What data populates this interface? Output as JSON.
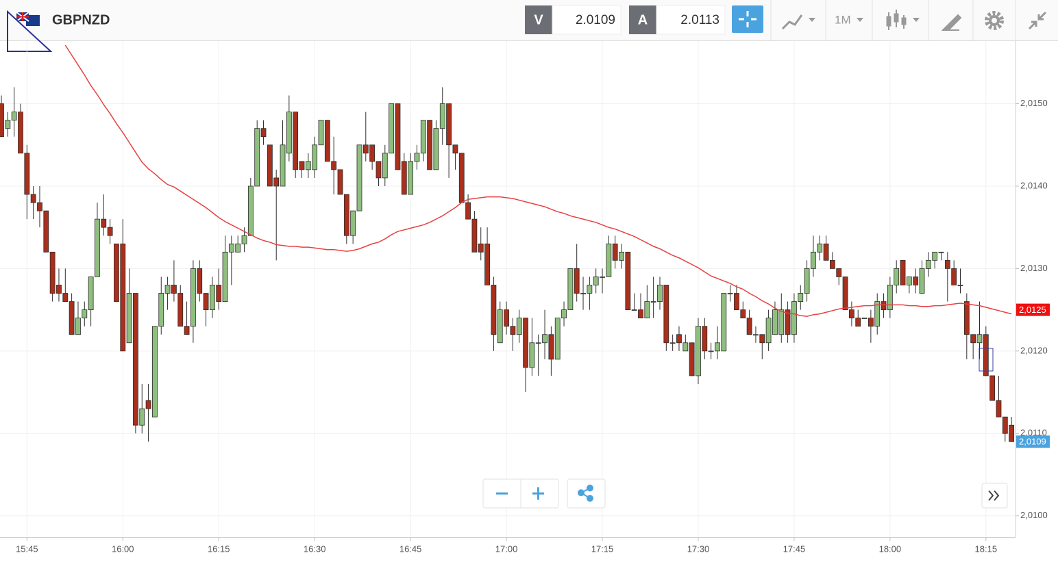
{
  "header": {
    "symbol": "GBPNZD",
    "bid_label": "V",
    "bid": "2.0109",
    "ask_label": "A",
    "ask": "2.0113",
    "timeframe": "1M"
  },
  "chart_data": {
    "type": "candlestick",
    "categories": [
      null,
      null,
      null,
      null,
      "15:45",
      null,
      null,
      null,
      null,
      null,
      null,
      null,
      null,
      null,
      null,
      null,
      null,
      null,
      null,
      "16:00",
      null,
      null,
      null,
      null,
      null,
      null,
      null,
      null,
      null,
      null,
      null,
      null,
      null,
      null,
      "16:15",
      null,
      null,
      null,
      null,
      null,
      null,
      null,
      null,
      null,
      null,
      null,
      null,
      null,
      null,
      "16:30",
      null,
      null,
      null,
      null,
      null,
      null,
      null,
      null,
      null,
      null,
      null,
      null,
      null,
      null,
      "16:45",
      null,
      null,
      null,
      null,
      null,
      null,
      null,
      null,
      null,
      null,
      null,
      null,
      null,
      null,
      "17:00",
      null,
      null,
      null,
      null,
      null,
      null,
      null,
      null,
      null,
      null,
      null,
      null,
      null,
      null,
      "17:15",
      null,
      null,
      null,
      null,
      null,
      null,
      null,
      null,
      null,
      null,
      null,
      null,
      null,
      null,
      "17:30",
      null,
      null,
      null,
      null,
      null,
      null,
      null,
      null,
      null,
      null,
      null,
      null,
      null,
      null,
      "17:45",
      null,
      null,
      null,
      null,
      null,
      null,
      null,
      null,
      null,
      null,
      null,
      null,
      null,
      null,
      "18:00",
      null,
      null,
      null,
      null,
      null,
      null,
      null,
      null,
      null,
      null,
      null,
      null,
      null,
      null,
      "18:15",
      null,
      null,
      null,
      null
    ],
    "open": [
      2.015,
      2.0147,
      2.0148,
      2.0149,
      2.0144,
      2.0139,
      2.0138,
      2.0137,
      2.0132,
      2.0128,
      2.0127,
      2.0126,
      2.0122,
      2.0124,
      2.0125,
      2.0129,
      2.0136,
      2.0135,
      2.0133,
      2.0133,
      2.0121,
      2.0127,
      2.0111,
      2.0114,
      2.0112,
      2.0123,
      2.0127,
      2.0128,
      2.0127,
      2.0123,
      2.0123,
      2.013,
      2.0127,
      2.0125,
      2.0128,
      2.0126,
      2.0132,
      2.0132,
      2.0133,
      2.0134,
      2.014,
      2.0147,
      2.0145,
      2.0141,
      2.014,
      2.0144,
      2.0149,
      2.0143,
      2.0142,
      2.0142,
      2.0145,
      2.0148,
      2.0143,
      2.0142,
      2.0139,
      2.0134,
      2.0137,
      2.0145,
      2.0145,
      2.0143,
      2.0141,
      2.0144,
      2.015,
      2.0143,
      2.0139,
      2.0143,
      2.0144,
      2.0148,
      2.0142,
      2.0147,
      2.015,
      2.0145,
      2.0144,
      2.0138,
      2.0136,
      2.0133,
      2.0133,
      2.0128,
      2.0121,
      2.0125,
      2.0123,
      2.0122,
      2.0124,
      2.0118,
      2.0121,
      2.0121,
      2.0122,
      2.0119,
      2.0124,
      2.0125,
      2.013,
      2.0127,
      2.0127,
      2.0128,
      2.0129,
      2.0129,
      2.0133,
      2.0131,
      2.0132,
      2.0125,
      2.0125,
      2.0124,
      2.0126,
      2.0126,
      2.0128,
      2.0121,
      2.0122,
      2.012,
      2.0121,
      2.0117,
      2.0123,
      2.012,
      2.012,
      2.012,
      2.0127,
      2.0127,
      2.0125,
      2.0124,
      2.0122,
      2.0122,
      2.0121,
      2.0122,
      2.0122,
      2.0125,
      2.0122,
      2.0126,
      2.0127,
      2.013,
      2.0132,
      2.0133,
      2.0131,
      2.013,
      2.0129,
      2.0125,
      2.0124,
      2.0124,
      2.0124,
      2.0123,
      2.0126,
      2.0125,
      2.0128,
      2.0131,
      2.0128,
      2.0129,
      2.0127,
      2.013,
      2.0131,
      2.0132,
      2.0131,
      2.013,
      2.0128,
      2.0126,
      2.0122,
      2.0121,
      2.0122,
      2.0117,
      2.0114,
      2.0112,
      2.0111
    ],
    "high": [
      2.0151,
      2.0149,
      2.0152,
      2.015,
      2.0145,
      2.014,
      2.014,
      2.0137,
      2.0132,
      2.013,
      2.013,
      2.0127,
      2.0126,
      2.0126,
      2.0129,
      2.0138,
      2.0139,
      2.0136,
      2.0133,
      2.0136,
      2.013,
      2.0127,
      2.0116,
      2.0116,
      2.0123,
      2.0129,
      2.0129,
      2.0131,
      2.0128,
      2.0126,
      2.0131,
      2.0131,
      2.0127,
      2.0129,
      2.013,
      2.0134,
      2.0134,
      2.0134,
      2.0135,
      2.0141,
      2.0148,
      2.0148,
      2.0145,
      2.0142,
      2.0148,
      2.0151,
      2.0149,
      2.0143,
      2.0144,
      2.0146,
      2.0148,
      2.0148,
      2.0146,
      2.0142,
      2.0139,
      2.0137,
      2.0145,
      2.0149,
      2.0145,
      2.0143,
      2.0145,
      2.015,
      2.015,
      2.0144,
      2.0144,
      2.0145,
      2.0148,
      2.0148,
      2.0148,
      2.0152,
      2.015,
      2.0145,
      2.0144,
      2.0139,
      2.0137,
      2.0135,
      2.0135,
      2.0129,
      2.0126,
      2.0126,
      2.0124,
      2.0125,
      2.0124,
      2.0124,
      2.0122,
      2.0125,
      2.0123,
      2.0124,
      2.0126,
      2.013,
      2.0133,
      2.0129,
      2.0129,
      2.013,
      2.013,
      2.0134,
      2.0134,
      2.0133,
      2.0132,
      2.0127,
      2.0127,
      2.0128,
      2.0129,
      2.0129,
      2.0128,
      2.0122,
      2.0123,
      2.0122,
      2.0121,
      2.0124,
      2.0124,
      2.0121,
      2.0123,
      2.0127,
      2.0128,
      2.0128,
      2.0126,
      2.0125,
      2.0123,
      2.0122,
      2.0125,
      2.0126,
      2.0127,
      2.0126,
      2.0127,
      2.0128,
      2.0131,
      2.0134,
      2.0134,
      2.0134,
      2.0132,
      2.013,
      2.0129,
      2.0126,
      2.0125,
      2.0124,
      2.0125,
      2.0127,
      2.0127,
      2.0129,
      2.0131,
      2.0131,
      2.0129,
      2.013,
      2.0131,
      2.0132,
      2.0132,
      2.0132,
      2.0132,
      2.0131,
      2.013,
      2.0127,
      2.0122,
      2.0126,
      2.0123,
      2.0117,
      2.0117,
      2.0112,
      2.0112
    ],
    "low": [
      2.0146,
      2.0146,
      2.0146,
      2.0144,
      2.0136,
      2.0136,
      2.0135,
      2.0132,
      2.0126,
      2.0126,
      2.0126,
      2.0122,
      2.0122,
      2.0123,
      2.0123,
      2.0129,
      2.0134,
      2.0133,
      2.0126,
      2.012,
      2.0121,
      2.011,
      2.011,
      2.0109,
      2.0112,
      2.0122,
      2.0125,
      2.0126,
      2.0123,
      2.0122,
      2.0121,
      2.0126,
      2.0123,
      2.0124,
      2.0125,
      2.0126,
      2.0128,
      2.0132,
      2.0132,
      2.0134,
      2.014,
      2.0145,
      2.014,
      2.0131,
      2.014,
      2.0143,
      2.0141,
      2.0141,
      2.0141,
      2.0141,
      2.0145,
      2.0143,
      2.0139,
      2.0139,
      2.0133,
      2.0133,
      2.0137,
      2.0143,
      2.0142,
      2.014,
      2.014,
      2.0144,
      2.0142,
      2.0139,
      2.0139,
      2.0142,
      2.0143,
      2.0142,
      2.0142,
      2.0145,
      2.0141,
      2.0142,
      2.0138,
      2.0136,
      2.0132,
      2.0131,
      2.0128,
      2.012,
      2.0121,
      2.0122,
      2.012,
      2.0121,
      2.0115,
      2.0117,
      2.0117,
      2.0119,
      2.0117,
      2.0119,
      2.0123,
      2.0125,
      2.0126,
      2.0125,
      2.0125,
      2.0127,
      2.0127,
      2.0129,
      2.013,
      2.013,
      2.0125,
      2.0125,
      2.0124,
      2.0124,
      2.0124,
      2.0125,
      2.012,
      2.012,
      2.012,
      2.012,
      2.0117,
      2.0116,
      2.0119,
      2.0119,
      2.0119,
      2.012,
      2.0126,
      2.0125,
      2.0124,
      2.0122,
      2.0121,
      2.0119,
      2.012,
      2.0122,
      2.0121,
      2.0121,
      2.0121,
      2.0125,
      2.0126,
      2.0129,
      2.0131,
      2.0131,
      2.013,
      2.0128,
      2.0125,
      2.0123,
      2.0123,
      2.0124,
      2.0121,
      2.0122,
      2.0124,
      2.0124,
      2.0127,
      2.0128,
      2.0127,
      2.0127,
      2.0127,
      2.0129,
      2.013,
      2.0131,
      2.0126,
      2.0128,
      2.0127,
      2.0119,
      2.0119,
      2.0119,
      2.0117,
      2.0114,
      2.0112,
      2.0109,
      2.0109
    ],
    "close": [
      2.0146,
      2.0148,
      2.0149,
      2.0144,
      2.0139,
      2.0138,
      2.0137,
      2.0132,
      2.0127,
      2.0127,
      2.0126,
      2.0122,
      2.0124,
      2.0125,
      2.0129,
      2.0136,
      2.0135,
      2.0134,
      2.0126,
      2.012,
      2.0127,
      2.0111,
      2.0113,
      2.0113,
      2.0123,
      2.0127,
      2.0128,
      2.0127,
      2.0123,
      2.0122,
      2.013,
      2.0127,
      2.0125,
      2.0128,
      2.0126,
      2.0132,
      2.0133,
      2.0133,
      2.0134,
      2.014,
      2.0147,
      2.0146,
      2.014,
      2.014,
      2.0145,
      2.0149,
      2.0142,
      2.0142,
      2.0143,
      2.0145,
      2.0148,
      2.0143,
      2.0142,
      2.0139,
      2.0134,
      2.0137,
      2.0145,
      2.0144,
      2.0143,
      2.0141,
      2.0144,
      2.015,
      2.0142,
      2.0139,
      2.0143,
      2.0144,
      2.0148,
      2.0142,
      2.0147,
      2.015,
      2.0145,
      2.0144,
      2.0138,
      2.0136,
      2.0132,
      2.0132,
      2.0128,
      2.0122,
      2.0125,
      2.0123,
      2.0122,
      2.0124,
      2.0118,
      2.0121,
      2.0121,
      2.0122,
      2.0119,
      2.0124,
      2.0125,
      2.013,
      2.0127,
      2.0127,
      2.0128,
      2.0129,
      2.0129,
      2.0133,
      2.0131,
      2.0132,
      2.0125,
      2.0125,
      2.0124,
      2.0126,
      2.0126,
      2.0128,
      2.0121,
      2.0121,
      2.0121,
      2.0121,
      2.0117,
      2.0123,
      2.012,
      2.012,
      2.0121,
      2.0127,
      2.0127,
      2.0125,
      2.0124,
      2.0122,
      2.0122,
      2.0121,
      2.0124,
      2.0125,
      2.0125,
      2.0122,
      2.0126,
      2.0127,
      2.013,
      2.0132,
      2.0133,
      2.0131,
      2.013,
      2.0129,
      2.0125,
      2.0124,
      2.0123,
      2.0124,
      2.0123,
      2.0126,
      2.0125,
      2.0128,
      2.013,
      2.0128,
      2.0129,
      2.0128,
      2.013,
      2.0131,
      2.0132,
      2.0132,
      2.013,
      2.0128,
      2.0128,
      2.0122,
      2.0121,
      2.0122,
      2.0117,
      2.0114,
      2.0112,
      2.011,
      2.0109
    ],
    "up_color": "#8fbf7f",
    "down_color": "#a8301c",
    "outline_color": "#2c2c2c",
    "ma": {
      "color": "#e84040",
      "values": [
        null,
        null,
        null,
        null,
        null,
        null,
        null,
        null,
        null,
        null,
        2.01571,
        2.01559,
        2.01547,
        2.01535,
        2.01522,
        2.01511,
        2.01499,
        2.01488,
        2.01476,
        2.01465,
        2.01453,
        2.01441,
        2.01429,
        2.01421,
        2.01415,
        2.01408,
        2.01402,
        2.01399,
        2.01394,
        2.01389,
        2.01384,
        2.01379,
        2.01374,
        2.01368,
        2.01362,
        2.01357,
        2.01353,
        2.01349,
        2.01345,
        2.01341,
        2.01337,
        2.01334,
        2.01332,
        2.01329,
        2.01328,
        2.01327,
        2.01327,
        2.01326,
        2.01326,
        2.01325,
        2.01324,
        2.01323,
        2.01323,
        2.01322,
        2.01321,
        2.01322,
        2.01324,
        2.01327,
        2.0133,
        2.01332,
        2.01336,
        2.01341,
        2.01345,
        2.01347,
        2.01349,
        2.01351,
        2.01353,
        2.01356,
        2.0136,
        2.01364,
        2.01369,
        2.01374,
        2.0138,
        2.01384,
        2.01385,
        2.01386,
        2.01387,
        2.01387,
        2.01387,
        2.01386,
        2.01385,
        2.01383,
        2.01381,
        2.01379,
        2.01377,
        2.01375,
        2.01372,
        2.01369,
        2.01367,
        2.01364,
        2.01362,
        2.0136,
        2.01358,
        2.01356,
        2.01353,
        2.0135,
        2.01348,
        2.01345,
        2.01342,
        2.01339,
        2.01335,
        2.01331,
        2.01327,
        2.01324,
        2.0132,
        2.01316,
        2.01313,
        2.01309,
        2.01305,
        2.01301,
        2.01296,
        2.01291,
        2.01288,
        2.01285,
        2.01282,
        2.01278,
        2.01275,
        2.0127,
        2.01266,
        2.01261,
        2.01257,
        2.01252,
        2.01248,
        2.01246,
        2.01245,
        2.01243,
        2.01242,
        2.01244,
        2.01245,
        2.01247,
        2.01249,
        2.01251,
        2.01252,
        2.01253,
        2.01254,
        2.01255,
        2.01255,
        2.01256,
        2.01256,
        2.01256,
        2.01256,
        2.01256,
        2.01255,
        2.01255,
        2.01254,
        2.01254,
        2.01255,
        2.01255,
        2.01256,
        2.01257,
        2.01258,
        2.01257,
        2.01256,
        2.01255,
        2.01253,
        2.01251,
        2.01249,
        2.01247,
        2.01245
      ]
    },
    "ylim": [
      2.00974,
      2.01576
    ],
    "yticks": [
      {
        "value": 2.01,
        "label": "2,0100"
      },
      {
        "value": 2.011,
        "label": "2,0110"
      },
      {
        "value": 2.012,
        "label": "2,0120"
      },
      {
        "value": 2.013,
        "label": "2,0130"
      },
      {
        "value": 2.014,
        "label": "2,0140"
      },
      {
        "value": 2.015,
        "label": "2,0150"
      }
    ],
    "price_tags": [
      {
        "value": 2.0125,
        "label": "2,0125",
        "color": "#f01010"
      },
      {
        "value": 2.0109,
        "label": "2,0109",
        "color": "#4aa3df"
      }
    ],
    "grid": true
  }
}
